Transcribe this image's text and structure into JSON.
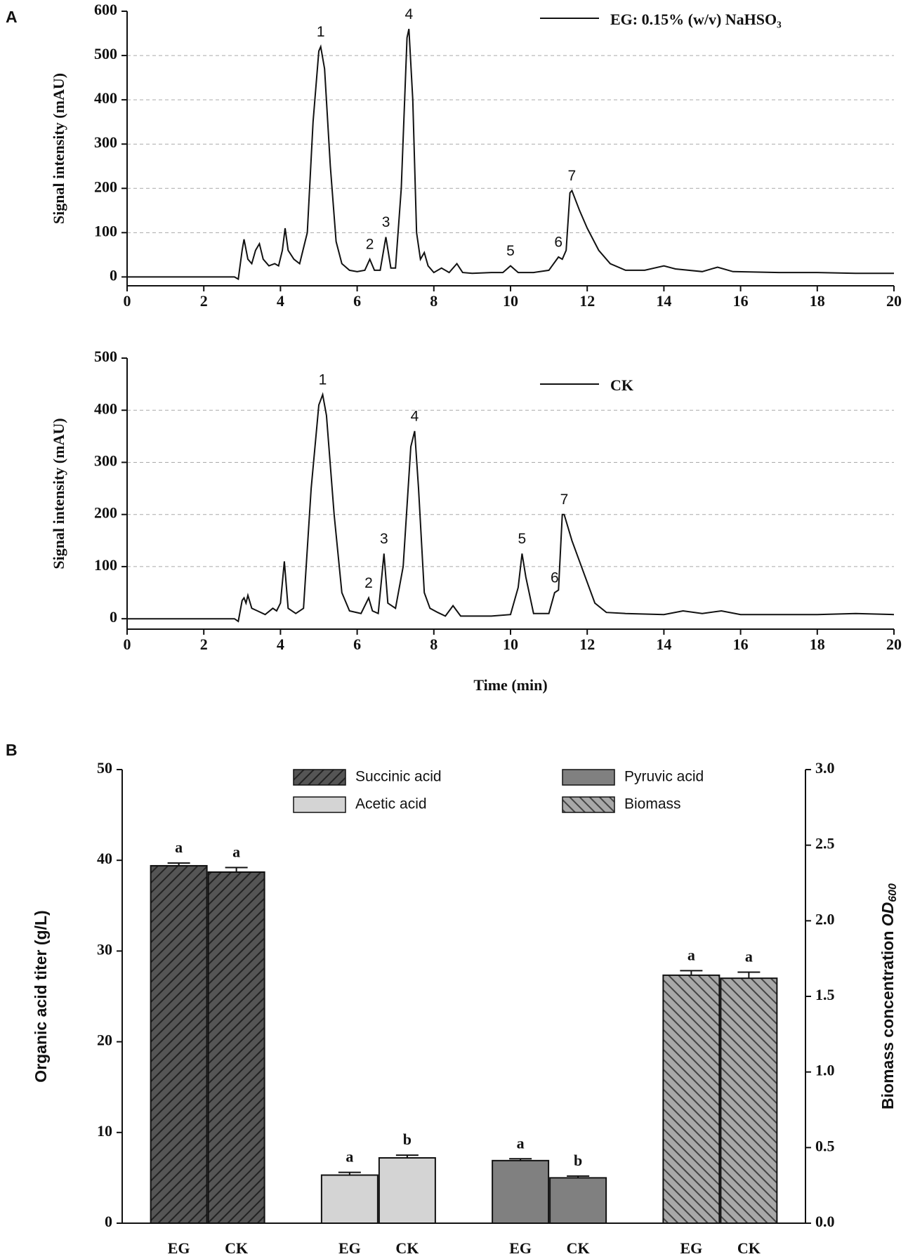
{
  "chart_data": [
    {
      "type": "line",
      "panel": "A",
      "ylabel": "Signal intensity (mAU)",
      "xlim": [
        0,
        20
      ],
      "xticks": [
        0,
        2,
        4,
        6,
        8,
        10,
        12,
        14,
        16,
        18,
        20
      ],
      "ylim": [
        -20,
        600
      ],
      "yticks": [
        0,
        100,
        200,
        300,
        400,
        500,
        600
      ],
      "grid": true,
      "x": [
        0,
        2.8,
        2.9,
        3.0,
        3.05,
        3.15,
        3.25,
        3.35,
        3.45,
        3.55,
        3.7,
        3.85,
        3.95,
        4.05,
        4.12,
        4.2,
        4.35,
        4.5,
        4.7,
        4.85,
        5.0,
        5.05,
        5.15,
        5.3,
        5.45,
        5.6,
        5.8,
        6.0,
        6.2,
        6.33,
        6.45,
        6.6,
        6.75,
        6.88,
        7.0,
        7.15,
        7.3,
        7.35,
        7.45,
        7.55,
        7.65,
        7.75,
        7.85,
        8.0,
        8.2,
        8.4,
        8.6,
        8.75,
        9.0,
        9.5,
        9.8,
        10.0,
        10.2,
        10.6,
        11.0,
        11.25,
        11.35,
        11.45,
        11.55,
        11.6,
        11.8,
        12.0,
        12.3,
        12.6,
        13.0,
        13.5,
        14.0,
        14.3,
        15.0,
        15.4,
        15.8,
        17.0,
        18.0,
        19.0,
        20.0
      ],
      "series": [
        {
          "name": "EG: 0.15% (w/v) NaHSO₃",
          "color": "#111111",
          "values": [
            0,
            0,
            -5,
            60,
            85,
            40,
            30,
            60,
            75,
            40,
            25,
            30,
            25,
            60,
            110,
            60,
            40,
            30,
            100,
            350,
            510,
            520,
            470,
            250,
            80,
            30,
            15,
            12,
            15,
            40,
            15,
            15,
            90,
            20,
            20,
            200,
            540,
            560,
            400,
            100,
            40,
            55,
            25,
            10,
            20,
            10,
            30,
            10,
            8,
            10,
            10,
            25,
            10,
            10,
            15,
            45,
            40,
            60,
            190,
            195,
            150,
            110,
            60,
            30,
            15,
            15,
            25,
            18,
            12,
            22,
            12,
            10,
            10,
            8,
            8
          ]
        }
      ],
      "annotations": [
        {
          "text": "1",
          "x": 5.05,
          "y": 520
        },
        {
          "text": "2",
          "x": 6.33,
          "y": 40
        },
        {
          "text": "3",
          "x": 6.75,
          "y": 90
        },
        {
          "text": "4",
          "x": 7.35,
          "y": 560
        },
        {
          "text": "5",
          "x": 10.0,
          "y": 25
        },
        {
          "text": "6",
          "x": 11.25,
          "y": 45
        },
        {
          "text": "7",
          "x": 11.6,
          "y": 195
        }
      ]
    },
    {
      "type": "line",
      "ylabel": "Signal intensity (mAU)",
      "xlabel": "Time (min)",
      "xlim": [
        0,
        20
      ],
      "xticks": [
        0,
        2,
        4,
        6,
        8,
        10,
        12,
        14,
        16,
        18,
        20
      ],
      "ylim": [
        -20,
        500
      ],
      "yticks": [
        0,
        100,
        200,
        300,
        400,
        500
      ],
      "grid": true,
      "x": [
        0,
        2.8,
        2.9,
        3.0,
        3.05,
        3.1,
        3.15,
        3.25,
        3.4,
        3.6,
        3.8,
        3.9,
        4.0,
        4.1,
        4.2,
        4.4,
        4.6,
        4.8,
        5.0,
        5.1,
        5.2,
        5.4,
        5.6,
        5.8,
        6.1,
        6.3,
        6.4,
        6.55,
        6.7,
        6.8,
        7.0,
        7.2,
        7.4,
        7.5,
        7.6,
        7.75,
        7.9,
        8.1,
        8.3,
        8.5,
        8.7,
        9.0,
        9.5,
        10.0,
        10.2,
        10.3,
        10.4,
        10.6,
        11.0,
        11.15,
        11.25,
        11.35,
        11.4,
        11.6,
        11.9,
        12.2,
        12.5,
        13.0,
        14.0,
        14.5,
        15.0,
        15.5,
        16.0,
        17.0,
        18.0,
        19.0,
        20.0
      ],
      "series": [
        {
          "name": "CK",
          "color": "#111111",
          "values": [
            0,
            0,
            -5,
            35,
            40,
            30,
            45,
            20,
            15,
            8,
            20,
            15,
            30,
            110,
            20,
            10,
            20,
            250,
            410,
            430,
            390,
            200,
            50,
            15,
            10,
            40,
            15,
            10,
            125,
            30,
            20,
            100,
            330,
            360,
            250,
            50,
            20,
            12,
            5,
            25,
            5,
            5,
            5,
            8,
            60,
            125,
            80,
            10,
            10,
            50,
            55,
            200,
            200,
            150,
            90,
            30,
            12,
            10,
            8,
            15,
            10,
            15,
            8,
            8,
            8,
            10,
            8
          ]
        }
      ],
      "annotations": [
        {
          "text": "1",
          "x": 5.1,
          "y": 430
        },
        {
          "text": "2",
          "x": 6.3,
          "y": 40
        },
        {
          "text": "3",
          "x": 6.7,
          "y": 125
        },
        {
          "text": "4",
          "x": 7.5,
          "y": 360
        },
        {
          "text": "5",
          "x": 10.3,
          "y": 125
        },
        {
          "text": "6",
          "x": 11.15,
          "y": 50
        },
        {
          "text": "7",
          "x": 11.4,
          "y": 200
        }
      ]
    },
    {
      "type": "bar",
      "panel": "B",
      "ylabel": "Organic acid titer (g/L)",
      "y2label": [
        "Biomass concentration ",
        "OD",
        "600"
      ],
      "categories": [
        "EG",
        "CK"
      ],
      "ylim": [
        0,
        50
      ],
      "yticks": [
        0,
        10,
        20,
        30,
        40,
        50
      ],
      "y2lim": [
        0,
        3
      ],
      "y2ticks": [
        {
          "value": 0,
          "label": "0.0"
        },
        0.5,
        {
          "value": 1,
          "label": "1.0"
        },
        1.5,
        {
          "value": 2,
          "label": "2.0"
        },
        2.5,
        {
          "value": 3,
          "label": "3.0"
        }
      ],
      "series": [
        {
          "name": "Succinic acid",
          "color": "#555555",
          "hatch": "/",
          "values": [
            39.4,
            38.7
          ],
          "errors": [
            0.3,
            0.5
          ],
          "significance": [
            "a",
            "a"
          ]
        },
        {
          "name": "Acetic acid",
          "color": "#d4d4d4",
          "hatch": null,
          "values": [
            5.3,
            7.2
          ],
          "errors": [
            0.3,
            0.3
          ],
          "significance": [
            "a",
            "b"
          ]
        },
        {
          "name": "Pyruvic acid",
          "color": "#808080",
          "hatch": null,
          "values": [
            6.9,
            5.0
          ],
          "errors": [
            0.2,
            0.2
          ],
          "significance": [
            "a",
            "b"
          ]
        },
        {
          "name": "Biomass",
          "color": "#a8a8a8",
          "hatch": "\\",
          "axis": "y2",
          "values": [
            1.64,
            1.62
          ],
          "errors": [
            0.03,
            0.04
          ],
          "significance": [
            "a",
            "a"
          ]
        }
      ]
    }
  ]
}
